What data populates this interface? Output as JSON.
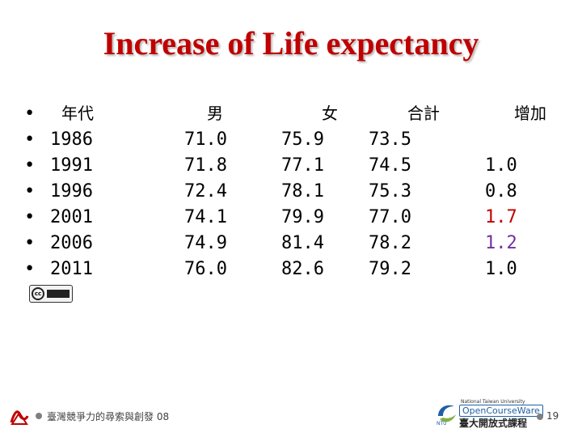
{
  "slide": {
    "title": "Increase of Life expectancy"
  },
  "table": {
    "headers": {
      "year": "年代",
      "male": "男",
      "female": "女",
      "total": "合計",
      "increase": "增加"
    },
    "rows": [
      {
        "year": "1986",
        "male": "71.0",
        "female": "75.9",
        "total": "73.5",
        "increase": ""
      },
      {
        "year": "1991",
        "male": "71.8",
        "female": "77.1",
        "total": "74.5",
        "increase": "1.0"
      },
      {
        "year": "1996",
        "male": "72.4",
        "female": "78.1",
        "total": "75.3",
        "increase": "0.8"
      },
      {
        "year": "2001",
        "male": "74.1",
        "female": "79.9",
        "total": "77.0",
        "increase": "1.7"
      },
      {
        "year": "2006",
        "male": "74.9",
        "female": "81.4",
        "total": "78.2",
        "increase": "1.2"
      },
      {
        "year": "2011",
        "male": "76.0",
        "female": "82.6",
        "total": "79.2",
        "increase": "1.0"
      }
    ],
    "increase_colors": [
      "#000000",
      "#000000",
      "#000000",
      "#c00000",
      "#7030a0",
      "#000000"
    ]
  },
  "footer": {
    "text": "臺灣競爭力的尋索與創發 08",
    "logo_small": "National Taiwan University",
    "logo_main": "OpenCourseWare",
    "logo_chinese": "臺大開放式課程",
    "page_number": "19"
  },
  "icons": {
    "license": "cc-license-icon",
    "pdf": "pdf-icon",
    "ocw": "ocw-logo-icon"
  }
}
